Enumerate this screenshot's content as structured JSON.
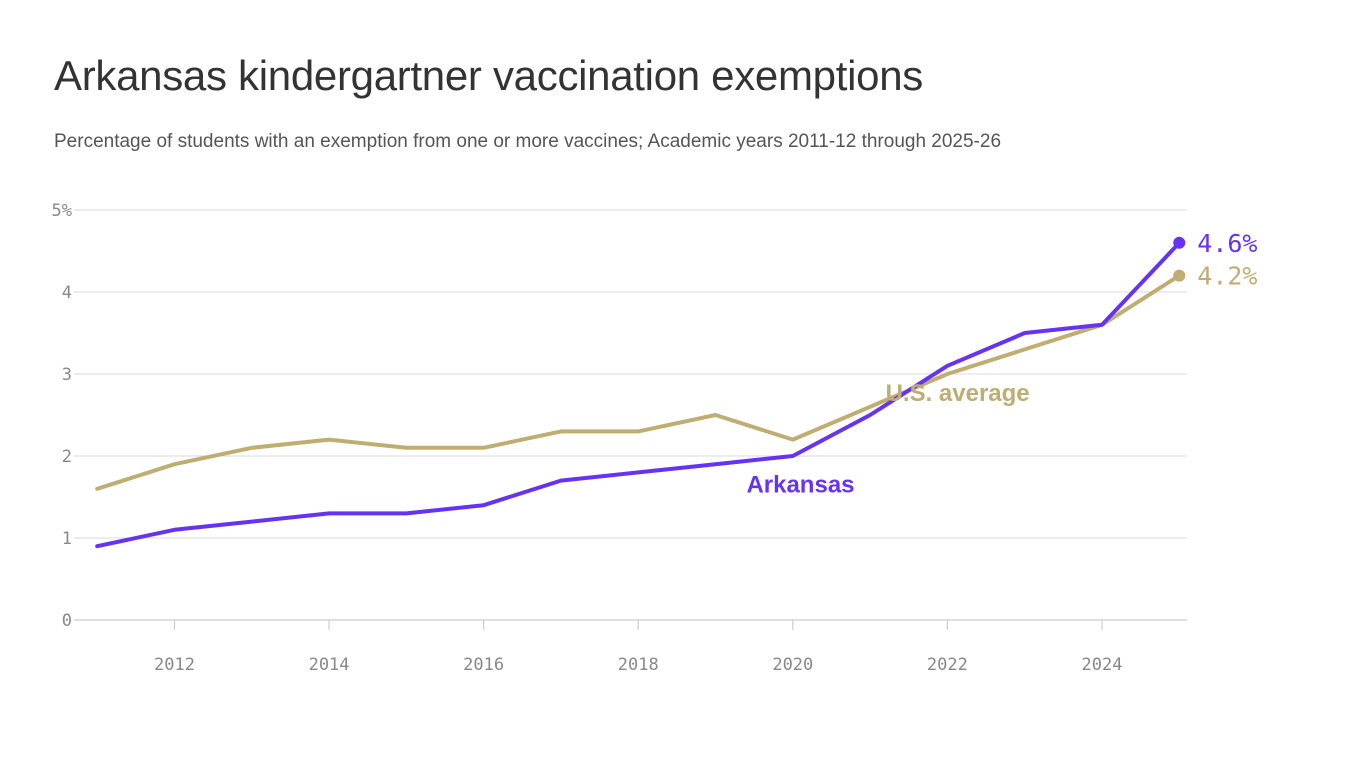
{
  "chart_data": {
    "type": "line",
    "title": "Arkansas kindergartner vaccination exemptions",
    "subtitle": "Percentage of students with an exemption from one or more vaccines; Academic years 2011-12 through 2025-26",
    "xlabel": "",
    "ylabel": "",
    "x": [
      2011,
      2012,
      2013,
      2014,
      2015,
      2016,
      2017,
      2018,
      2019,
      2020,
      2021,
      2022,
      2023,
      2024,
      2025
    ],
    "xlim": [
      2010.7,
      2025.1
    ],
    "ylim": [
      0,
      5
    ],
    "x_ticks": [
      "2012",
      "2014",
      "2016",
      "2018",
      "2020",
      "2022",
      "2024"
    ],
    "y_ticks": [
      "0",
      "1",
      "2",
      "3",
      "4",
      "5%"
    ],
    "grid": "horizontal",
    "series": [
      {
        "name": "U.S. average",
        "color": "#bfad72",
        "values": [
          1.6,
          1.9,
          2.1,
          2.2,
          2.1,
          2.1,
          2.3,
          2.3,
          2.5,
          2.2,
          2.6,
          3.0,
          3.3,
          3.6,
          4.2
        ],
        "end_label": "4.2%"
      },
      {
        "name": "Arkansas",
        "color": "#6533f5",
        "values": [
          0.9,
          1.1,
          1.2,
          1.3,
          1.3,
          1.4,
          1.7,
          1.8,
          1.9,
          2.0,
          2.5,
          3.1,
          3.5,
          3.6,
          4.6
        ],
        "end_label": "4.6%"
      }
    ]
  }
}
